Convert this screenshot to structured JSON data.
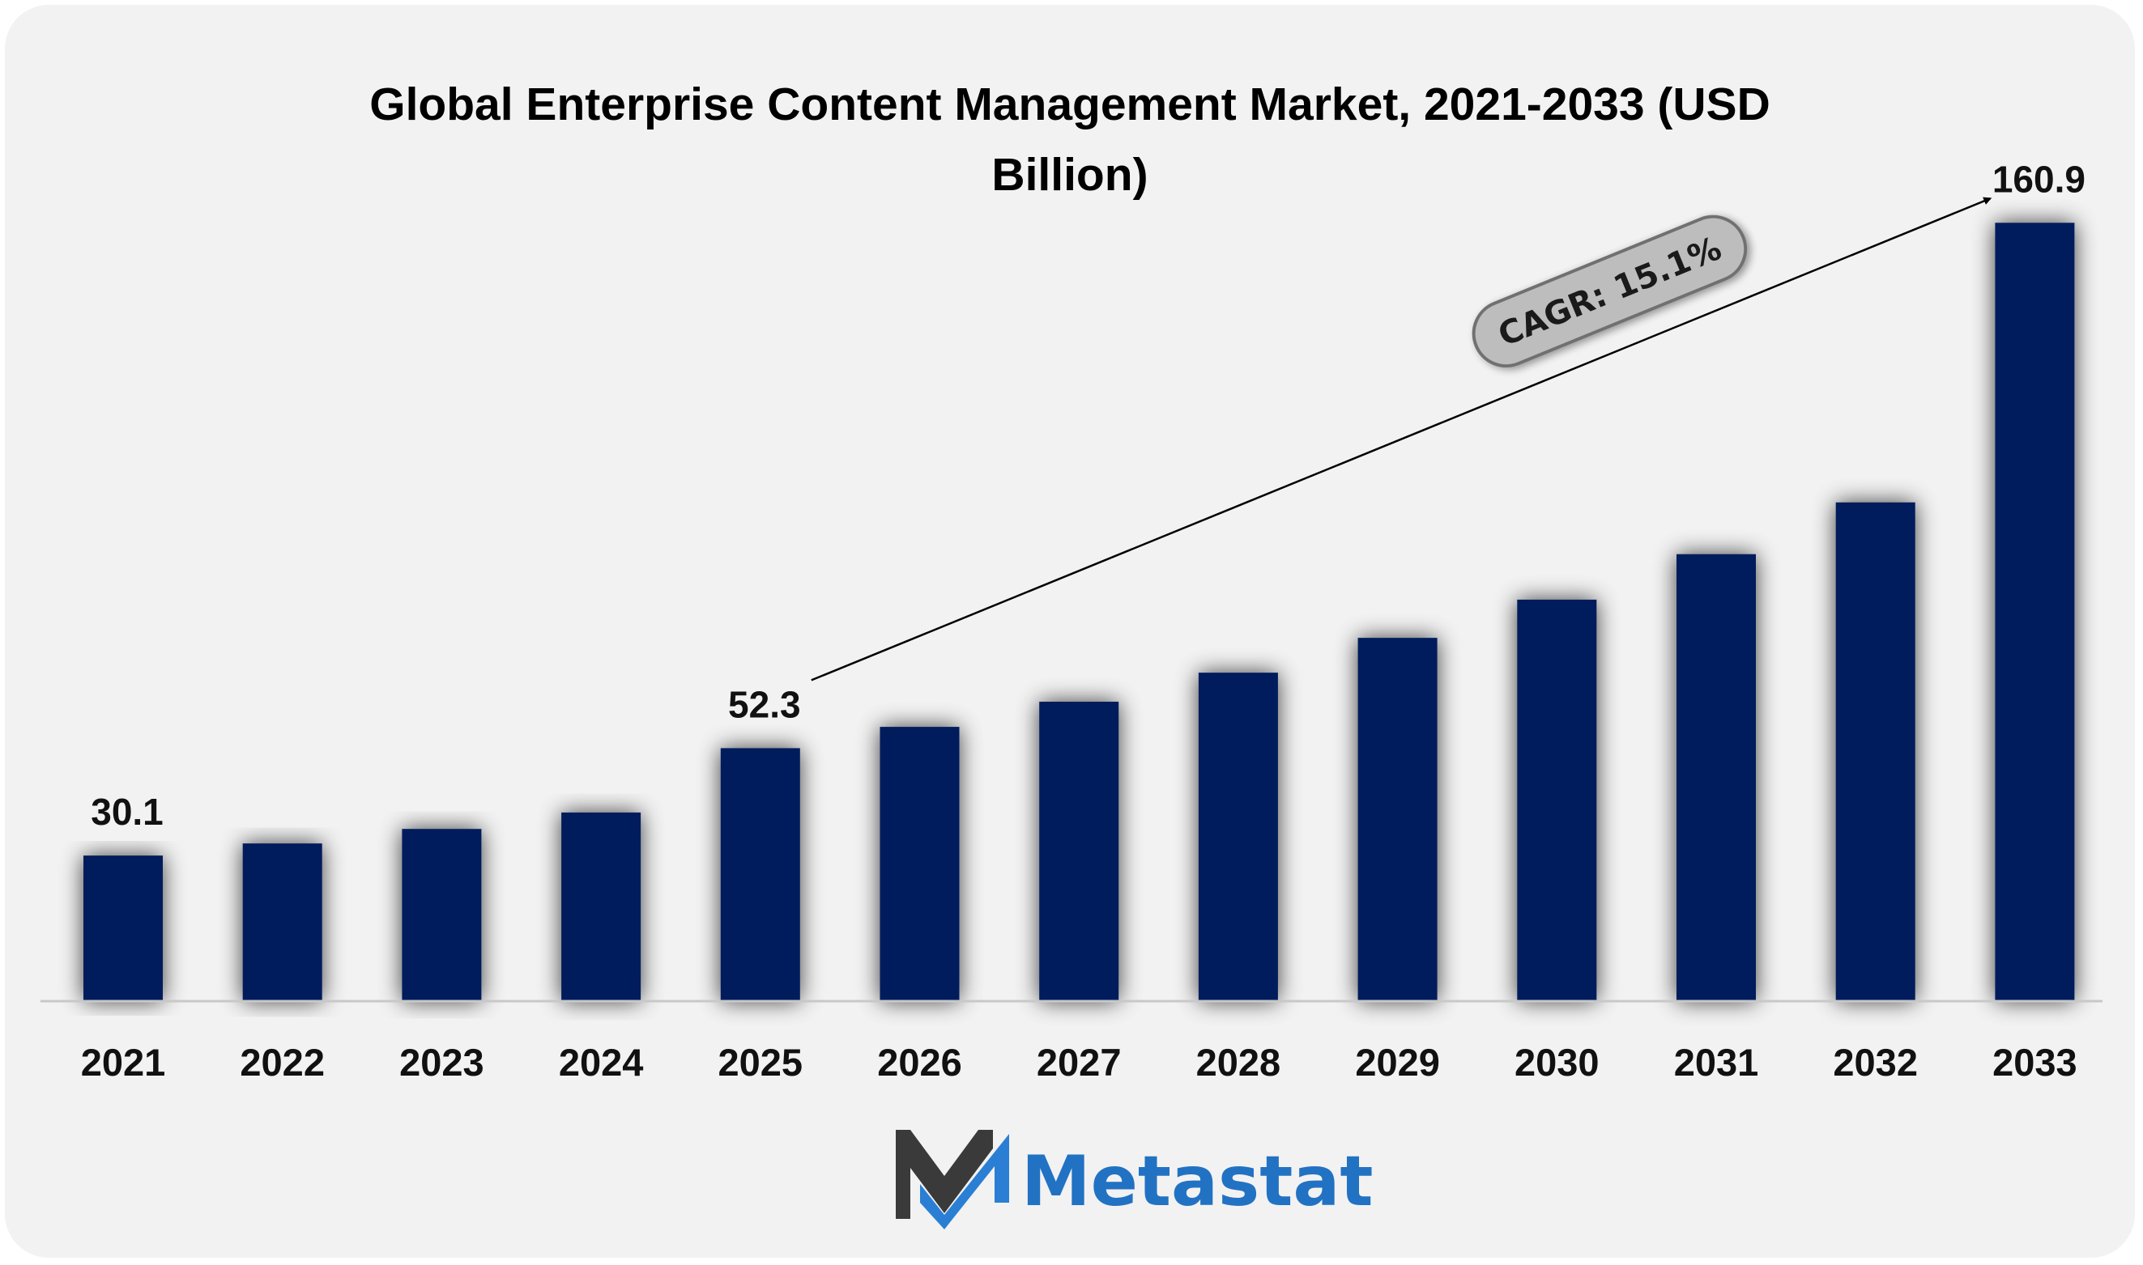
{
  "chart_data": {
    "type": "bar",
    "title_lines": [
      "Global Enterprise Content Management Market, 2021-2033 (USD",
      "Billion)"
    ],
    "categories": [
      "2021",
      "2022",
      "2023",
      "2024",
      "2025",
      "2026",
      "2027",
      "2028",
      "2029",
      "2030",
      "2031",
      "2032",
      "2033"
    ],
    "values": [
      30.1,
      32.6,
      35.6,
      39.0,
      52.3,
      56.7,
      61.9,
      67.9,
      75.1,
      83.0,
      92.4,
      103.1,
      160.9
    ],
    "data_labels": [
      {
        "index": 0,
        "text": "30.1"
      },
      {
        "index": 4,
        "text": "52.3"
      },
      {
        "index": 12,
        "text": "160.9"
      }
    ],
    "ylim": [
      0,
      175
    ],
    "grid": false,
    "bar_color": "#041e5b",
    "annotation": {
      "text": "CAGR: 15.1%",
      "from_index": 4,
      "to_index": 12
    }
  },
  "logo": {
    "name": "Metastat",
    "text_color": "#2272c3",
    "mark_dark_color": "#3a3a3a",
    "mark_light_color": "#2a7fd4"
  }
}
